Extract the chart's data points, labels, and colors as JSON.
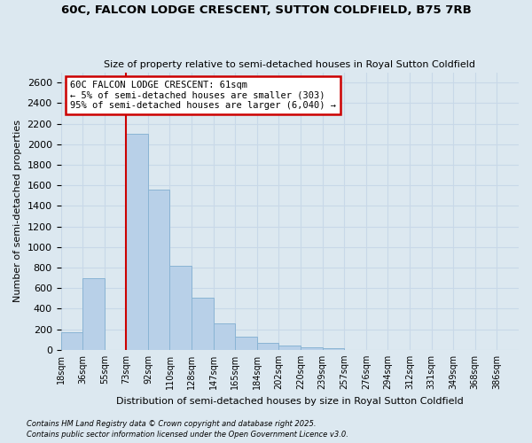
{
  "title": "60C, FALCON LODGE CRESCENT, SUTTON COLDFIELD, B75 7RB",
  "subtitle": "Size of property relative to semi-detached houses in Royal Sutton Coldfield",
  "xlabel": "Distribution of semi-detached houses by size in Royal Sutton Coldfield",
  "ylabel": "Number of semi-detached properties",
  "bar_labels": [
    "18sqm",
    "36sqm",
    "55sqm",
    "73sqm",
    "92sqm",
    "110sqm",
    "128sqm",
    "147sqm",
    "165sqm",
    "184sqm",
    "202sqm",
    "220sqm",
    "239sqm",
    "257sqm",
    "276sqm",
    "294sqm",
    "312sqm",
    "331sqm",
    "349sqm",
    "368sqm",
    "386sqm"
  ],
  "bar_values": [
    170,
    700,
    0,
    2100,
    1560,
    820,
    510,
    255,
    125,
    70,
    40,
    20,
    15,
    0,
    0,
    0,
    0,
    0,
    0,
    0,
    0
  ],
  "bar_color": "#b8d0e8",
  "bar_edge_color": "#8ab4d4",
  "annotation_text_line1": "60C FALCON LODGE CRESCENT: 61sqm",
  "annotation_text_line2": "← 5% of semi-detached houses are smaller (303)",
  "annotation_text_line3": "95% of semi-detached houses are larger (6,040) →",
  "annotation_box_color": "#ffffff",
  "annotation_border_color": "#cc0000",
  "vline_color": "#cc0000",
  "ylim": [
    0,
    2700
  ],
  "yticks": [
    0,
    200,
    400,
    600,
    800,
    1000,
    1200,
    1400,
    1600,
    1800,
    2000,
    2200,
    2400,
    2600
  ],
  "grid_color": "#c8d8e8",
  "bg_color": "#dce8f0",
  "footnote1": "Contains HM Land Registry data © Crown copyright and database right 2025.",
  "footnote2": "Contains public sector information licensed under the Open Government Licence v3.0."
}
